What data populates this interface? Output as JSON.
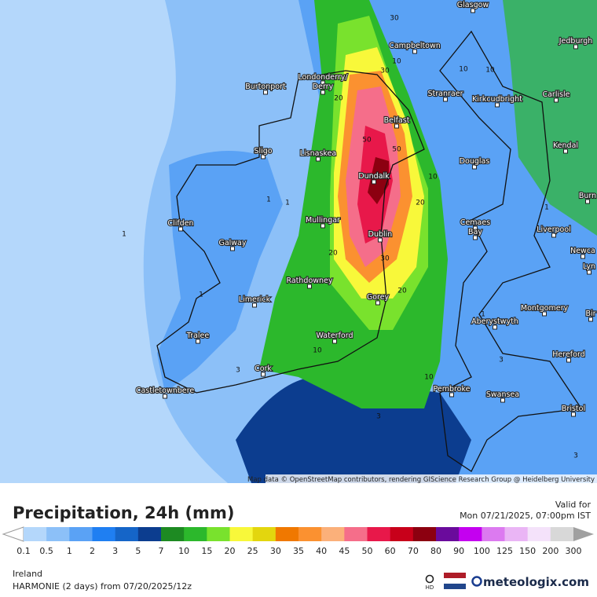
{
  "map": {
    "cities": [
      "Glasgow",
      "Campbeltown",
      "Jedburgh",
      "Carlisle",
      "Londonderry/",
      "Derry",
      "Burtonport",
      "Stranraer",
      "Kirkcudbright",
      "Belfast",
      "Sligo",
      "Lisnaskea",
      "Douglas",
      "Kendal",
      "Dundalk",
      "Burn",
      "Clifden",
      "Mullingar",
      "Cemaes",
      "Bay",
      "Liverpool",
      "Galway",
      "Dublin",
      "Newca",
      "Lyn",
      "Rathdowney",
      "Limerick",
      "Gorey",
      "Montgomery",
      "Aberystwyth",
      "Bir",
      "Tralee",
      "Waterford",
      "Hereford",
      "Cork",
      "Pembroke",
      "Swansea",
      "Castletownbere",
      "Bristol"
    ],
    "contour_labels": [
      30,
      10,
      30,
      20,
      50,
      50,
      10,
      20,
      1,
      1,
      1,
      20,
      30,
      20,
      10,
      3,
      10,
      3,
      1,
      1,
      3,
      10,
      10,
      3,
      1
    ],
    "attribution": "Map data © OpenStreetMap contributors, rendering GIScience Research Group @ Heidelberg University"
  },
  "footer": {
    "title": "Precipitation, 24h (mm)",
    "valid_label": "Valid for",
    "valid_time": "Mon 07/21/2025, 07:00pm IST",
    "legend": [
      {
        "value": 0.1,
        "color": "#b4d7fb"
      },
      {
        "value": 0.5,
        "color": "#8cc0f8"
      },
      {
        "value": 1,
        "color": "#5aa2f5"
      },
      {
        "value": 2,
        "color": "#1f7ff2"
      },
      {
        "value": 3,
        "color": "#1565c8"
      },
      {
        "value": 5,
        "color": "#0c3d8f"
      },
      {
        "value": 7,
        "color": "#1d8a22"
      },
      {
        "value": 10,
        "color": "#2cb82c"
      },
      {
        "value": 15,
        "color": "#79e22d"
      },
      {
        "value": 20,
        "color": "#f8f83a"
      },
      {
        "value": 25,
        "color": "#e3d60e"
      },
      {
        "value": 30,
        "color": "#f07800"
      },
      {
        "value": 35,
        "color": "#fb9130"
      },
      {
        "value": 40,
        "color": "#fbb07a"
      },
      {
        "value": 45,
        "color": "#f56e8a"
      },
      {
        "value": 50,
        "color": "#e8184a"
      },
      {
        "value": 60,
        "color": "#c8001a"
      },
      {
        "value": 70,
        "color": "#8c0010"
      },
      {
        "value": 80,
        "color": "#6a0b9c"
      },
      {
        "value": 90,
        "color": "#c400f0"
      },
      {
        "value": 100,
        "color": "#dc7af0"
      },
      {
        "value": 125,
        "color": "#eab5f5"
      },
      {
        "value": 150,
        "color": "#f4e2fa"
      },
      {
        "value": 200,
        "color": "#d8d8d8"
      },
      {
        "value": 300,
        "color": "#a0a0a0"
      }
    ],
    "region": "Ireland",
    "model": "HARMONIE (2 days) from 07/20/2025/12z",
    "hd": "HD",
    "brand": "meteologix.com"
  }
}
